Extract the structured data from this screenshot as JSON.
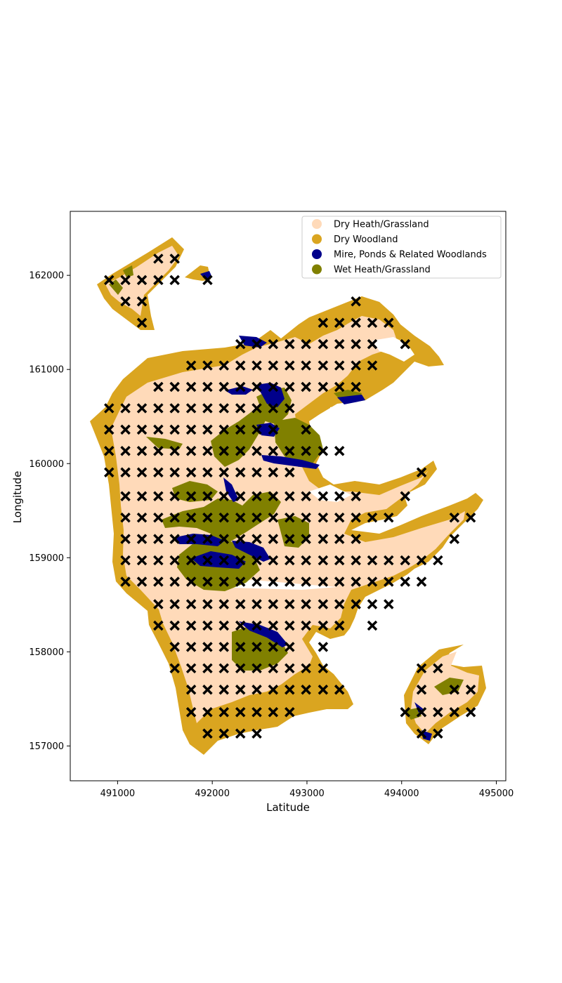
{
  "map": {
    "x_axis_label": "Latitude",
    "y_axis_label": "Longitude",
    "x_range": [
      490500,
      495100
    ],
    "y_range": [
      156630,
      162680
    ],
    "x_ticks": [
      491000,
      492000,
      493000,
      494000,
      495000
    ],
    "y_ticks": [
      157000,
      158000,
      159000,
      160000,
      161000,
      162000
    ],
    "legend_placement": "top-right",
    "legend": [
      {
        "label": "Dry Heath/Grassland",
        "color": "#FFDAB9"
      },
      {
        "label": "Dry Woodland",
        "color": "#DAA520"
      },
      {
        "label": "Mire, Ponds & Related Woodlands",
        "color": "#00008B"
      },
      {
        "label": "Wet Heath/Grassland",
        "color": "#808000"
      }
    ],
    "marker": "x",
    "marker_color": "#000000",
    "grid_spacing_x": 173,
    "grid_spacing_y": 227,
    "sample_rows": [
      {
        "y": 162177,
        "x": [
          491430,
          491603
        ]
      },
      {
        "y": 161950,
        "x": [
          490910,
          491083,
          491257,
          491430,
          491603,
          491950
        ]
      },
      {
        "y": 161723,
        "x": [
          491083,
          491257,
          493517
        ]
      },
      {
        "y": 161496,
        "x": [
          491257,
          493170,
          493343,
          493517,
          493690,
          493863
        ]
      },
      {
        "y": 161269,
        "x": [
          492297,
          492470,
          492643,
          492817,
          492990,
          493170,
          493343,
          493517,
          493690,
          494037
        ]
      },
      {
        "y": 161042,
        "x": [
          491777,
          491950,
          492123,
          492297,
          492470,
          492643,
          492817,
          492990,
          493170,
          493343,
          493517,
          493690
        ]
      },
      {
        "y": 160815,
        "x": [
          491430,
          491603,
          491777,
          491950,
          492123,
          492297,
          492470,
          492643,
          492817,
          492990,
          493170,
          493343,
          493517
        ]
      },
      {
        "y": 160588,
        "x": [
          490910,
          491083,
          491257,
          491430,
          491603,
          491777,
          491950,
          492123,
          492297,
          492470,
          492643,
          492817
        ]
      },
      {
        "y": 160361,
        "x": [
          490910,
          491083,
          491257,
          491430,
          491603,
          491777,
          491950,
          492123,
          492297,
          492470,
          492643,
          492990
        ]
      },
      {
        "y": 160134,
        "x": [
          490910,
          491083,
          491257,
          491430,
          491603,
          491777,
          491950,
          492123,
          492297,
          492470,
          492643,
          492817,
          492990,
          493170,
          493343
        ]
      },
      {
        "y": 159907,
        "x": [
          490910,
          491083,
          491257,
          491430,
          491603,
          491777,
          491950,
          492123,
          492297,
          492470,
          492643,
          492817,
          494210
        ]
      },
      {
        "y": 159653,
        "x": [
          491083,
          491257,
          491430,
          491603,
          491777,
          491950,
          492123,
          492297,
          492470,
          492643,
          492817,
          492990,
          493170,
          493343,
          493517,
          494037
        ]
      },
      {
        "y": 159426,
        "x": [
          491083,
          491257,
          491430,
          491603,
          491777,
          491950,
          492123,
          492297,
          492470,
          492643,
          492817,
          492990,
          493170,
          493343,
          493517,
          493690,
          493863,
          494557,
          494730
        ]
      },
      {
        "y": 159199,
        "x": [
          491083,
          491257,
          491430,
          491603,
          491777,
          491950,
          492123,
          492297,
          492470,
          492643,
          492817,
          492990,
          493170,
          493343,
          493517,
          494557
        ]
      },
      {
        "y": 158972,
        "x": [
          491083,
          491257,
          491430,
          491603,
          491777,
          491950,
          492123,
          492297,
          492470,
          492643,
          492817,
          492990,
          493170,
          493343,
          493517,
          493690,
          493863,
          494037,
          494210,
          494383
        ]
      },
      {
        "y": 158745,
        "x": [
          491083,
          491257,
          491430,
          491603,
          491777,
          491950,
          492123,
          492297,
          492470,
          492643,
          492817,
          492990,
          493170,
          493343,
          493517,
          493690,
          493863,
          494037,
          494210
        ]
      },
      {
        "y": 158506,
        "x": [
          491430,
          491603,
          491777,
          491950,
          492123,
          492297,
          492470,
          492643,
          492817,
          492990,
          493170,
          493343,
          493517,
          493690,
          493863
        ]
      },
      {
        "y": 158279,
        "x": [
          491430,
          491603,
          491777,
          491950,
          492123,
          492297,
          492470,
          492643,
          492817,
          492990,
          493170,
          493343,
          493690
        ]
      },
      {
        "y": 158052,
        "x": [
          491603,
          491777,
          491950,
          492123,
          492297,
          492470,
          492643,
          492817,
          493170
        ]
      },
      {
        "y": 157825,
        "x": [
          491603,
          491777,
          491950,
          492123,
          492297,
          492470,
          492643,
          492817,
          492990,
          493170,
          494210,
          494383
        ]
      },
      {
        "y": 157598,
        "x": [
          491777,
          491950,
          492123,
          492297,
          492470,
          492643,
          492817,
          492990,
          493170,
          493343,
          494210,
          494557,
          494730
        ]
      },
      {
        "y": 157359,
        "x": [
          491777,
          491950,
          492123,
          492297,
          492470,
          492643,
          492817,
          494037,
          494210,
          494383,
          494557,
          494730
        ]
      },
      {
        "y": 157132,
        "x": [
          491950,
          492123,
          492297,
          492470,
          494210,
          494383
        ]
      }
    ]
  }
}
